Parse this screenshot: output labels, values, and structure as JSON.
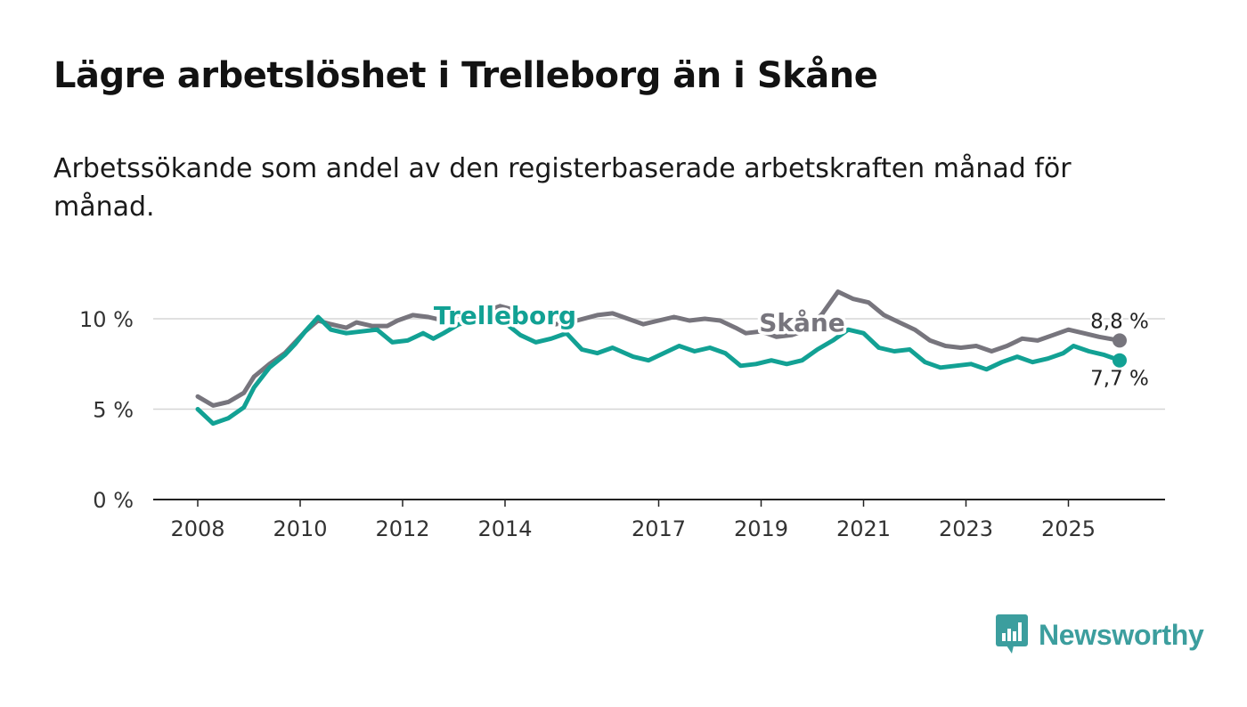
{
  "title": "Lägre arbetslöshet i Trelleborg än i Skåne",
  "subtitle": "Arbetssökande som andel av den registerbaserade arbetskraften månad för månad.",
  "brand": {
    "name": "Newsworthy",
    "color": "#3c9e9e",
    "icon": "newsworthy-logo-icon"
  },
  "chart_data": {
    "type": "line",
    "title": "Lägre arbetslöshet i Trelleborg än i Skåne",
    "xlabel": "",
    "ylabel": "",
    "xlim": [
      2008,
      2026
    ],
    "ylim": [
      0,
      12
    ],
    "yticks": [
      0,
      5,
      10
    ],
    "ytick_labels": [
      "0 %",
      "5 %",
      "10 %"
    ],
    "xticks": [
      2008,
      2010,
      2012,
      2014,
      2017,
      2019,
      2021,
      2023,
      2025
    ],
    "xtick_labels": [
      "2008",
      "2010",
      "2012",
      "2014",
      "2017",
      "2019",
      "2021",
      "2023",
      "2025"
    ],
    "grid": true,
    "series": [
      {
        "name": "Skåne",
        "color": "#77757d",
        "end_label": "8,8 %",
        "points": [
          [
            2008.0,
            5.7
          ],
          [
            2008.3,
            5.2
          ],
          [
            2008.6,
            5.4
          ],
          [
            2008.9,
            5.9
          ],
          [
            2009.1,
            6.8
          ],
          [
            2009.4,
            7.5
          ],
          [
            2009.7,
            8.1
          ],
          [
            2009.9,
            8.7
          ],
          [
            2010.1,
            9.3
          ],
          [
            2010.35,
            9.9
          ],
          [
            2010.6,
            9.7
          ],
          [
            2010.9,
            9.5
          ],
          [
            2011.1,
            9.8
          ],
          [
            2011.4,
            9.6
          ],
          [
            2011.7,
            9.6
          ],
          [
            2011.9,
            9.9
          ],
          [
            2012.2,
            10.2
          ],
          [
            2012.5,
            10.1
          ],
          [
            2012.8,
            9.9
          ],
          [
            2013.1,
            10.2
          ],
          [
            2013.5,
            10.3
          ],
          [
            2013.9,
            10.7
          ],
          [
            2014.3,
            10.4
          ],
          [
            2014.7,
            10.0
          ],
          [
            2015.0,
            9.7
          ],
          [
            2015.4,
            9.9
          ],
          [
            2015.8,
            10.2
          ],
          [
            2016.1,
            10.3
          ],
          [
            2016.4,
            10.0
          ],
          [
            2016.7,
            9.7
          ],
          [
            2017.0,
            9.9
          ],
          [
            2017.3,
            10.1
          ],
          [
            2017.6,
            9.9
          ],
          [
            2017.9,
            10.0
          ],
          [
            2018.2,
            9.9
          ],
          [
            2018.5,
            9.5
          ],
          [
            2018.7,
            9.2
          ],
          [
            2019.0,
            9.3
          ],
          [
            2019.3,
            9.0
          ],
          [
            2019.6,
            9.1
          ],
          [
            2019.9,
            9.4
          ],
          [
            2020.2,
            10.3
          ],
          [
            2020.5,
            11.5
          ],
          [
            2020.8,
            11.1
          ],
          [
            2021.1,
            10.9
          ],
          [
            2021.4,
            10.2
          ],
          [
            2021.7,
            9.8
          ],
          [
            2022.0,
            9.4
          ],
          [
            2022.3,
            8.8
          ],
          [
            2022.6,
            8.5
          ],
          [
            2022.9,
            8.4
          ],
          [
            2023.2,
            8.5
          ],
          [
            2023.5,
            8.2
          ],
          [
            2023.8,
            8.5
          ],
          [
            2024.1,
            8.9
          ],
          [
            2024.4,
            8.8
          ],
          [
            2024.7,
            9.1
          ],
          [
            2025.0,
            9.4
          ],
          [
            2025.3,
            9.2
          ],
          [
            2025.6,
            9.0
          ],
          [
            2026.0,
            8.8
          ]
        ]
      },
      {
        "name": "Trelleborg",
        "color": "#12a194",
        "end_label": "7,7 %",
        "points": [
          [
            2008.0,
            5.0
          ],
          [
            2008.3,
            4.2
          ],
          [
            2008.6,
            4.5
          ],
          [
            2008.9,
            5.1
          ],
          [
            2009.1,
            6.2
          ],
          [
            2009.4,
            7.3
          ],
          [
            2009.7,
            8.0
          ],
          [
            2009.9,
            8.6
          ],
          [
            2010.1,
            9.3
          ],
          [
            2010.35,
            10.1
          ],
          [
            2010.6,
            9.4
          ],
          [
            2010.9,
            9.2
          ],
          [
            2011.2,
            9.3
          ],
          [
            2011.5,
            9.4
          ],
          [
            2011.8,
            8.7
          ],
          [
            2012.1,
            8.8
          ],
          [
            2012.4,
            9.2
          ],
          [
            2012.6,
            8.9
          ],
          [
            2012.8,
            9.2
          ],
          [
            2013.1,
            9.7
          ],
          [
            2013.5,
            9.9
          ],
          [
            2013.9,
            10.0
          ],
          [
            2014.3,
            9.1
          ],
          [
            2014.6,
            8.7
          ],
          [
            2014.9,
            8.9
          ],
          [
            2015.2,
            9.2
          ],
          [
            2015.5,
            8.3
          ],
          [
            2015.8,
            8.1
          ],
          [
            2016.1,
            8.4
          ],
          [
            2016.5,
            7.9
          ],
          [
            2016.8,
            7.7
          ],
          [
            2017.1,
            8.1
          ],
          [
            2017.4,
            8.5
          ],
          [
            2017.7,
            8.2
          ],
          [
            2018.0,
            8.4
          ],
          [
            2018.3,
            8.1
          ],
          [
            2018.6,
            7.4
          ],
          [
            2018.9,
            7.5
          ],
          [
            2019.2,
            7.7
          ],
          [
            2019.5,
            7.5
          ],
          [
            2019.8,
            7.7
          ],
          [
            2020.1,
            8.3
          ],
          [
            2020.4,
            8.8
          ],
          [
            2020.7,
            9.4
          ],
          [
            2021.0,
            9.2
          ],
          [
            2021.3,
            8.4
          ],
          [
            2021.6,
            8.2
          ],
          [
            2021.9,
            8.3
          ],
          [
            2022.2,
            7.6
          ],
          [
            2022.5,
            7.3
          ],
          [
            2022.8,
            7.4
          ],
          [
            2023.1,
            7.5
          ],
          [
            2023.4,
            7.2
          ],
          [
            2023.7,
            7.6
          ],
          [
            2024.0,
            7.9
          ],
          [
            2024.3,
            7.6
          ],
          [
            2024.6,
            7.8
          ],
          [
            2024.9,
            8.1
          ],
          [
            2025.1,
            8.5
          ],
          [
            2025.4,
            8.2
          ],
          [
            2025.7,
            8.0
          ],
          [
            2026.0,
            7.7
          ]
        ]
      }
    ],
    "inline_labels": [
      {
        "series": "Trelleborg",
        "text": "Trelleborg",
        "x": 2014.0,
        "y": 10.2
      },
      {
        "series": "Skåne",
        "text": "Skåne",
        "x": 2019.8,
        "y": 9.8
      }
    ]
  }
}
